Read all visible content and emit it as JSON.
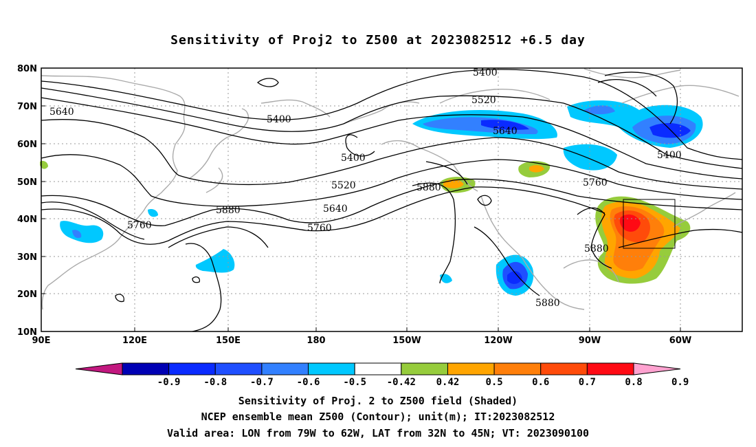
{
  "title": "Sensitivity of Proj2 to Z500 at 2023082512 +6.5 day",
  "axes": {
    "lat_labels": [
      "80N",
      "70N",
      "60N",
      "50N",
      "40N",
      "30N",
      "20N",
      "10N"
    ],
    "lon_labels": [
      "90E",
      "120E",
      "150E",
      "180",
      "150W",
      "120W",
      "90W",
      "60W"
    ]
  },
  "contour_labels": [
    "5640",
    "5400",
    "5400",
    "5400",
    "5520",
    "5640",
    "5520",
    "5880",
    "5640",
    "5760",
    "5760",
    "5880",
    "5760",
    "5880",
    "5880",
    "5400"
  ],
  "colorbar": {
    "ticks": [
      "-0.9",
      "-0.8",
      "-0.7",
      "-0.6",
      "-0.5",
      "-0.42",
      "0.42",
      "0.5",
      "0.6",
      "0.7",
      "0.8",
      "0.9"
    ],
    "colors": [
      "#c2187f",
      "#0000b4",
      "#0a2bff",
      "#1f4fff",
      "#3280ff",
      "#00c8ff",
      "#ffffff",
      "#96cc3c",
      "#ffa500",
      "#ff7f0a",
      "#ff4b0a",
      "#ff0a14",
      "#ffa2d0"
    ]
  },
  "captions": [
    "Sensitivity of Proj. 2 to Z500 field (Shaded)",
    "NCEP ensemble mean Z500 (Contour); unit(m); IT:2023082512",
    "Valid area: LON from 79W to 62W, LAT from 32N to 45N; VT: 2023090100"
  ],
  "valid_area": {
    "lon": [
      "79W",
      "62W"
    ],
    "lat": [
      "32N",
      "45N"
    ]
  }
}
